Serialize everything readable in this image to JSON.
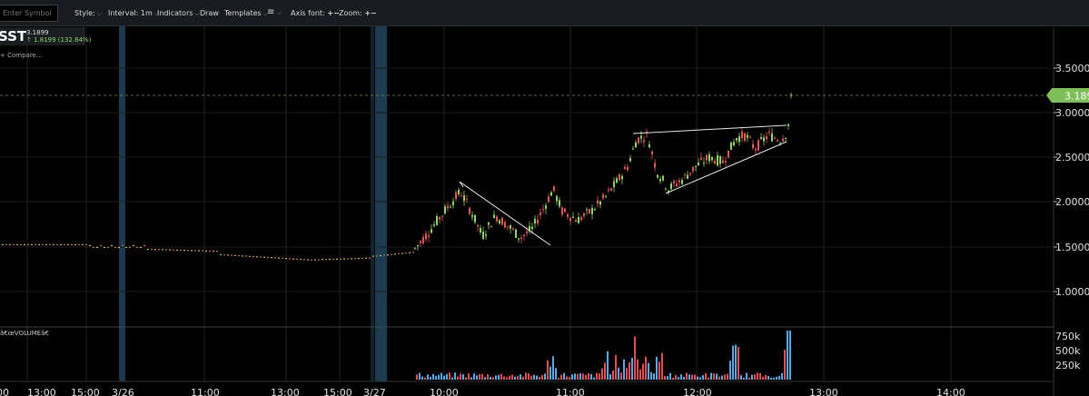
{
  "toolbar": {
    "symbol_placeholder": "Enter Symbol",
    "style_label": "Style:",
    "interval_label": "Interval: 1m",
    "indicators_label": "Indicators",
    "draw_label": "Draw",
    "templates_label": "Templates",
    "menu_label": "≡",
    "axis_font_label": "Axis font:",
    "zoom_label": "Zoom:",
    "plus": "+",
    "minus": "−"
  },
  "legend": {
    "symbol": "SST",
    "price": "3.1899",
    "change": "↑ 1.8199 (132.84%)",
    "compare": "+ Compare..."
  },
  "colors": {
    "up": "#8fd46a",
    "down": "#e05a5a",
    "price_badge": "#7fbf5a",
    "vol_up": "#5aa9e6",
    "vol_down": "#e05050",
    "session_shade": "#1f3f55"
  },
  "chart_data": {
    "type": "candlestick",
    "price_axis": {
      "ticks": [
        "3.5000",
        "3.0000",
        "2.5000",
        "2.0000",
        "1.5000",
        "1.0000"
      ],
      "range": [
        0.8,
        3.85
      ]
    },
    "last_price": "3.1899",
    "volume_pane": {
      "label": "â€œVOLUMEâ€",
      "ticks": [
        "750k",
        "500k",
        "250k"
      ],
      "max": 850000
    },
    "time_axis": {
      "ticks": [
        "00",
        "13:00",
        "15:00",
        "3/26",
        "11:00",
        "13:00",
        "15:00",
        "3/27",
        "10:00",
        "11:00",
        "12:00",
        "13:00",
        "14:00"
      ]
    }
  }
}
